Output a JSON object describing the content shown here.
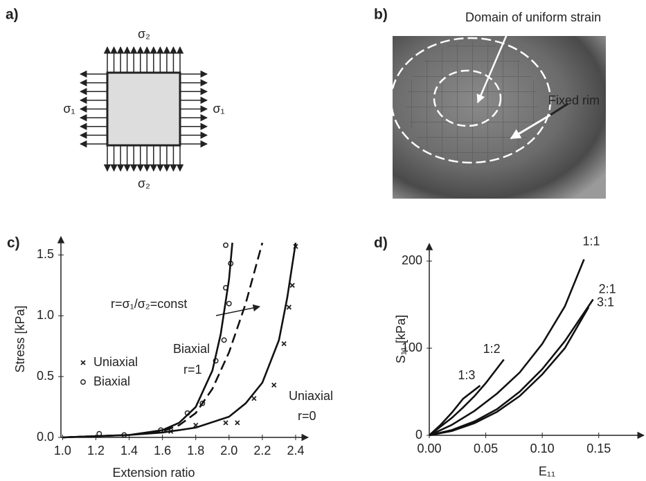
{
  "panel_a": {
    "label": "a)",
    "top": "σ₂",
    "left": "σ₁",
    "right": "σ₁",
    "bottom": "σ₂"
  },
  "panel_b": {
    "label": "b)",
    "annotations": [
      "Domain of uniform strain",
      "Fixed rim"
    ]
  },
  "chart_data": [
    {
      "type": "line",
      "panel_label": "c)",
      "xlabel": "Extension ratio",
      "ylabel": "Stress [kPa]",
      "xlim": [
        0.99,
        2.475
      ],
      "ylim": [
        0,
        1.65
      ],
      "xticks": [
        {
          "value": 1,
          "label": "1.0"
        },
        1.2,
        1.4,
        1.6,
        1.8,
        {
          "value": 2,
          "label": "2.0"
        },
        2.2,
        2.4
      ],
      "yticks": [
        {
          "value": 0,
          "label": "0.0"
        },
        0.5,
        {
          "value": 1,
          "label": "1.0"
        },
        1.5
      ],
      "annotations": [
        "r=σ₁/σ₂=const",
        "Biaxial",
        "r=1",
        "Uniaxial",
        "r=0"
      ],
      "series": [
        {
          "name": "Uniaxial",
          "kind": "scatter",
          "marker": "x",
          "color": "#222",
          "x": [
            1.65,
            1.8,
            1.98,
            2.05,
            2.15,
            2.27,
            2.33,
            2.36,
            2.38,
            2.4
          ],
          "values": [
            0.05,
            0.1,
            0.12,
            0.12,
            0.32,
            0.43,
            0.77,
            1.07,
            1.25,
            1.57
          ]
        },
        {
          "name": "Biaxial",
          "kind": "scatter",
          "marker": "o",
          "color": "#222",
          "x": [
            1.22,
            1.37,
            1.59,
            1.75,
            1.84,
            1.92,
            1.97,
            1.98,
            2.0,
            2.01,
            1.98
          ],
          "values": [
            0.03,
            0.02,
            0.06,
            0.2,
            0.28,
            0.63,
            0.8,
            1.23,
            1.1,
            1.43,
            1.58
          ]
        },
        {
          "kind": "line",
          "dash": false,
          "color": "#111",
          "x": [
            1.0,
            1.2,
            1.4,
            1.6,
            1.7,
            1.8,
            1.9,
            1.95,
            2.0,
            2.02
          ],
          "values": [
            0,
            0.01,
            0.02,
            0.06,
            0.12,
            0.25,
            0.55,
            0.85,
            1.3,
            1.6
          ]
        },
        {
          "kind": "line",
          "dash": true,
          "color": "#111",
          "x": [
            1.0,
            1.2,
            1.4,
            1.6,
            1.7,
            1.8,
            1.9,
            2.0,
            2.1,
            2.2
          ],
          "values": [
            0,
            0.01,
            0.02,
            0.05,
            0.1,
            0.2,
            0.4,
            0.7,
            1.1,
            1.6
          ]
        },
        {
          "kind": "line",
          "dash": false,
          "color": "#111",
          "x": [
            1.0,
            1.2,
            1.4,
            1.6,
            1.8,
            2.0,
            2.1,
            2.2,
            2.3,
            2.35,
            2.4
          ],
          "values": [
            0,
            0.01,
            0.02,
            0.04,
            0.08,
            0.17,
            0.28,
            0.45,
            0.8,
            1.15,
            1.6
          ]
        }
      ]
    },
    {
      "type": "line",
      "panel_label": "d)",
      "xlabel": "E₁₁",
      "ylabel": "S₁₁ [kPa]",
      "xlim": [
        0,
        0.19
      ],
      "ylim": [
        0,
        220
      ],
      "xticks": [
        {
          "value": 0,
          "label": "0.00"
        },
        0.05,
        {
          "value": 0.1,
          "label": "0.10"
        },
        0.15
      ],
      "yticks": [
        0,
        100,
        200
      ],
      "series": [
        {
          "name": "1:3",
          "kind": "line",
          "color": "#111",
          "x": [
            0,
            0.01,
            0.02,
            0.03,
            0.045
          ],
          "values": [
            0,
            12,
            26,
            42,
            57
          ]
        },
        {
          "name": "1:2",
          "kind": "line",
          "color": "#111",
          "x": [
            0,
            0.01,
            0.02,
            0.03,
            0.04,
            0.05,
            0.066
          ],
          "values": [
            0,
            10,
            20,
            32,
            45,
            60,
            87
          ]
        },
        {
          "name": "1:1",
          "kind": "line",
          "color": "#111",
          "x": [
            0,
            0.02,
            0.04,
            0.06,
            0.08,
            0.1,
            0.12,
            0.137
          ],
          "values": [
            0,
            12,
            28,
            48,
            72,
            105,
            148,
            202
          ]
        },
        {
          "name": "2:1",
          "kind": "line",
          "color": "#111",
          "x": [
            0,
            0.02,
            0.04,
            0.06,
            0.08,
            0.1,
            0.12,
            0.145
          ],
          "values": [
            0,
            6,
            16,
            30,
            50,
            76,
            108,
            156
          ]
        },
        {
          "name": "3:1",
          "kind": "line",
          "color": "#111",
          "x": [
            0,
            0.02,
            0.04,
            0.06,
            0.08,
            0.1,
            0.12,
            0.141
          ],
          "values": [
            0,
            5,
            14,
            27,
            45,
            70,
            100,
            147
          ]
        }
      ]
    }
  ]
}
